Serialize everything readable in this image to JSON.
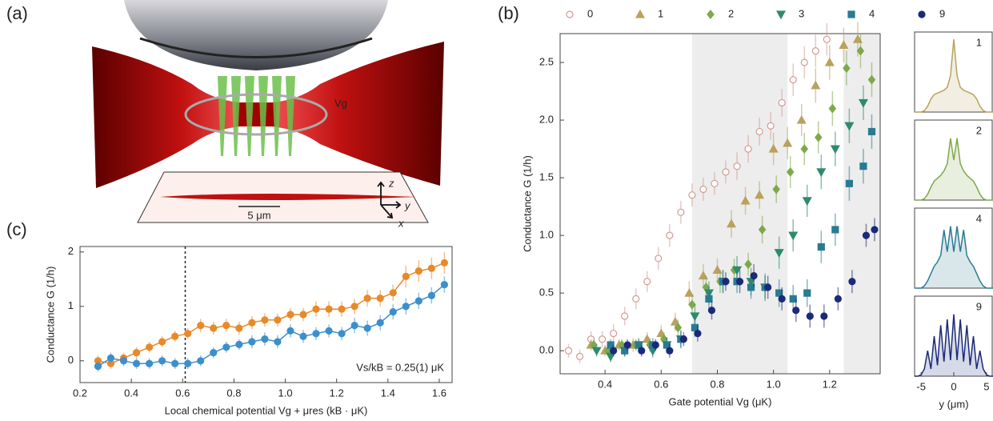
{
  "panel_labels": [
    "(a)",
    "(b)",
    "(c)"
  ],
  "diagram": {
    "gate_label": "Vg",
    "scale_bar": "5 μm",
    "axis_labels": [
      "z",
      "y",
      "x"
    ]
  },
  "chart_data": [
    {
      "type": "scatter",
      "xlabel": "Gate potential Vg (μK)",
      "ylabel": "Conductance G (1/h)",
      "xlim": [
        0.24,
        1.38
      ],
      "ylim": [
        -0.2,
        2.75
      ],
      "xticks": [
        0.4,
        0.6,
        0.8,
        {
          "value": 1,
          "label": "1.0"
        },
        1.2
      ],
      "yticks": [
        {
          "value": 0,
          "label": "0.0"
        },
        0.5,
        {
          "value": 1,
          "label": "1.0"
        },
        1.5,
        {
          "value": 2,
          "label": "2.0"
        },
        2.5
      ],
      "shaded_regions": [
        [
          0.71,
          1.05
        ],
        [
          1.25,
          1.38
        ]
      ],
      "legend": "top",
      "series": [
        {
          "name": "0",
          "color": "#d49a94",
          "marker": "open-circle",
          "x": [
            0.27,
            0.31,
            0.35,
            0.39,
            0.43,
            0.47,
            0.51,
            0.55,
            0.59,
            0.63,
            0.67,
            0.71,
            0.75,
            0.79,
            0.83,
            0.87,
            0.91,
            0.95,
            0.99,
            1.03,
            1.07,
            1.11,
            1.15,
            1.19
          ],
          "values": [
            0.0,
            -0.05,
            0.1,
            0.1,
            0.15,
            0.3,
            0.45,
            0.6,
            0.8,
            1.0,
            1.2,
            1.35,
            1.4,
            1.45,
            1.55,
            1.6,
            1.75,
            1.9,
            1.95,
            2.15,
            2.35,
            2.5,
            2.6,
            2.7
          ],
          "errors": [
            0.06,
            0.06,
            0.07,
            0.07,
            0.08,
            0.08,
            0.09,
            0.09,
            0.1,
            0.1,
            0.1,
            0.1,
            0.1,
            0.1,
            0.1,
            0.12,
            0.12,
            0.12,
            0.12,
            0.12,
            0.14,
            0.14,
            0.14,
            0.14
          ]
        },
        {
          "name": "1",
          "color": "#b9a15e",
          "marker": "triangle",
          "x": [
            0.35,
            0.4,
            0.45,
            0.5,
            0.55,
            0.6,
            0.65,
            0.7,
            0.75,
            0.8,
            0.85,
            0.9,
            0.95,
            1.0,
            1.05,
            1.1,
            1.15,
            1.2,
            1.25,
            1.3
          ],
          "values": [
            0.05,
            0.0,
            0.05,
            0.05,
            0.1,
            0.15,
            0.25,
            0.5,
            0.65,
            0.7,
            1.1,
            1.3,
            1.35,
            1.75,
            1.8,
            2.0,
            2.3,
            2.5,
            2.65,
            2.7
          ],
          "errors": [
            0.05,
            0.05,
            0.05,
            0.06,
            0.06,
            0.07,
            0.08,
            0.1,
            0.1,
            0.1,
            0.12,
            0.12,
            0.12,
            0.14,
            0.14,
            0.14,
            0.15,
            0.15,
            0.15,
            0.15
          ]
        },
        {
          "name": "2",
          "color": "#7ea84a",
          "marker": "diamond",
          "x": [
            0.36,
            0.41,
            0.46,
            0.51,
            0.56,
            0.61,
            0.66,
            0.71,
            0.76,
            0.81,
            0.86,
            0.91,
            0.96,
            1.01,
            1.06,
            1.11,
            1.16,
            1.21,
            1.26,
            1.31,
            1.35
          ],
          "values": [
            0.05,
            0.0,
            0.05,
            0.05,
            0.05,
            0.1,
            0.2,
            0.4,
            0.55,
            0.6,
            0.7,
            0.75,
            1.05,
            1.4,
            1.55,
            1.75,
            1.85,
            2.1,
            2.45,
            2.6,
            2.35
          ],
          "errors": [
            0.05,
            0.05,
            0.05,
            0.05,
            0.06,
            0.06,
            0.07,
            0.08,
            0.1,
            0.1,
            0.1,
            0.1,
            0.12,
            0.12,
            0.14,
            0.14,
            0.14,
            0.15,
            0.15,
            0.15,
            0.15
          ]
        },
        {
          "name": "3",
          "color": "#2e8b6c",
          "marker": "down-triangle",
          "x": [
            0.37,
            0.42,
            0.47,
            0.52,
            0.57,
            0.62,
            0.67,
            0.72,
            0.77,
            0.82,
            0.87,
            0.92,
            0.97,
            1.02,
            1.07,
            1.12,
            1.17,
            1.22,
            1.27,
            1.32
          ],
          "values": [
            0.0,
            -0.05,
            0.0,
            0.05,
            0.0,
            0.05,
            0.1,
            0.3,
            0.5,
            0.6,
            0.7,
            0.6,
            0.55,
            0.85,
            1.0,
            1.3,
            1.55,
            1.75,
            1.95,
            2.15
          ],
          "errors": [
            0.05,
            0.05,
            0.05,
            0.06,
            0.06,
            0.07,
            0.08,
            0.1,
            0.1,
            0.1,
            0.12,
            0.12,
            0.12,
            0.14,
            0.14,
            0.14,
            0.15,
            0.15,
            0.15,
            0.15
          ]
        },
        {
          "name": "4",
          "color": "#2a7a92",
          "marker": "square",
          "x": [
            0.42,
            0.47,
            0.52,
            0.57,
            0.62,
            0.67,
            0.72,
            0.77,
            0.82,
            0.87,
            0.92,
            0.97,
            1.02,
            1.07,
            1.12,
            1.17,
            1.22,
            1.27,
            1.32,
            1.35
          ],
          "values": [
            0.05,
            0.0,
            0.05,
            0.05,
            0.05,
            0.1,
            0.2,
            0.45,
            0.6,
            0.6,
            0.55,
            0.55,
            0.5,
            0.45,
            0.5,
            0.9,
            1.05,
            1.45,
            1.6,
            1.9
          ],
          "errors": [
            0.05,
            0.05,
            0.05,
            0.06,
            0.06,
            0.07,
            0.08,
            0.1,
            0.1,
            0.1,
            0.1,
            0.1,
            0.12,
            0.12,
            0.12,
            0.14,
            0.14,
            0.15,
            0.15,
            0.15
          ]
        },
        {
          "name": "9",
          "color": "#1b2a78",
          "marker": "filled-circle",
          "x": [
            0.43,
            0.48,
            0.53,
            0.58,
            0.63,
            0.68,
            0.73,
            0.78,
            0.83,
            0.88,
            0.93,
            0.98,
            1.03,
            1.08,
            1.13,
            1.18,
            1.23,
            1.28,
            1.33,
            1.36
          ],
          "values": [
            0.0,
            0.05,
            0.0,
            0.05,
            0.0,
            0.1,
            0.15,
            0.35,
            0.6,
            0.6,
            0.65,
            0.55,
            0.45,
            0.35,
            0.3,
            0.3,
            0.45,
            0.6,
            1.0,
            1.05
          ],
          "errors": [
            0.05,
            0.05,
            0.05,
            0.05,
            0.06,
            0.06,
            0.07,
            0.08,
            0.08,
            0.1,
            0.1,
            0.1,
            0.1,
            0.1,
            0.1,
            0.1,
            0.1,
            0.1,
            0.1,
            0.1
          ]
        }
      ]
    },
    {
      "type": "area",
      "xlabel": "y (μm)",
      "xlim": [
        -6,
        6
      ],
      "ylim": [
        0,
        1.1
      ],
      "xticks": [
        -5,
        0,
        5
      ],
      "x": [
        -6,
        -5.5,
        -5,
        -4.5,
        -4,
        -3.5,
        -3,
        -2.5,
        -2,
        -1.5,
        -1,
        -0.5,
        0,
        0.5,
        1,
        1.5,
        2,
        2.5,
        3,
        3.5,
        4,
        4.5,
        5,
        5.5,
        6
      ],
      "series": [
        {
          "name": "1",
          "color": "#b9a15e",
          "values": [
            0,
            0,
            0,
            0.02,
            0.08,
            0.18,
            0.24,
            0.26,
            0.28,
            0.3,
            0.34,
            0.5,
            1.0,
            0.5,
            0.34,
            0.3,
            0.28,
            0.26,
            0.24,
            0.18,
            0.08,
            0.02,
            0,
            0,
            0
          ]
        },
        {
          "name": "2",
          "color": "#7ea84a",
          "values": [
            0,
            0,
            0,
            0.02,
            0.08,
            0.18,
            0.26,
            0.3,
            0.34,
            0.4,
            0.5,
            0.85,
            0.55,
            0.85,
            0.5,
            0.4,
            0.34,
            0.3,
            0.26,
            0.18,
            0.08,
            0.02,
            0,
            0,
            0
          ]
        },
        {
          "name": "4",
          "color": "#2a7a92",
          "values": [
            0,
            0,
            0,
            0.03,
            0.1,
            0.2,
            0.3,
            0.36,
            0.45,
            0.8,
            0.5,
            0.85,
            0.5,
            0.85,
            0.5,
            0.8,
            0.45,
            0.36,
            0.3,
            0.2,
            0.1,
            0.03,
            0,
            0,
            0
          ]
        },
        {
          "name": "9",
          "color": "#1b2a78",
          "values": [
            0,
            0,
            0.02,
            0.1,
            0.35,
            0.1,
            0.55,
            0.15,
            0.7,
            0.2,
            0.78,
            0.22,
            0.85,
            0.22,
            0.78,
            0.2,
            0.7,
            0.15,
            0.55,
            0.1,
            0.35,
            0.1,
            0.02,
            0,
            0
          ]
        }
      ]
    },
    {
      "type": "scatter",
      "xlabel": "Local chemical potential Vg + μres (kB · μK)",
      "ylabel": "Conductance G (1/h)",
      "xlim": [
        0.2,
        1.65
      ],
      "ylim": [
        -0.4,
        2.1
      ],
      "xticks": [
        0.2,
        0.4,
        0.6,
        0.8,
        {
          "value": 1,
          "label": "1.0"
        },
        1.2,
        1.4,
        1.6
      ],
      "yticks": [
        0,
        1,
        2
      ],
      "vline": 0.61,
      "annotation": "Vs/kB = 0.25(1) μK",
      "fit_line": true,
      "series": [
        {
          "color": "#e8892a",
          "marker": "filled-circle",
          "x": [
            0.27,
            0.32,
            0.37,
            0.42,
            0.47,
            0.52,
            0.57,
            0.62,
            0.67,
            0.72,
            0.77,
            0.82,
            0.87,
            0.92,
            0.97,
            1.02,
            1.07,
            1.12,
            1.17,
            1.22,
            1.27,
            1.32,
            1.37,
            1.42,
            1.47,
            1.52,
            1.57,
            1.62
          ],
          "values": [
            0.0,
            -0.05,
            0.05,
            0.15,
            0.25,
            0.35,
            0.45,
            0.5,
            0.65,
            0.6,
            0.65,
            0.6,
            0.7,
            0.75,
            0.75,
            0.85,
            0.85,
            0.95,
            0.95,
            0.95,
            1.0,
            1.15,
            1.15,
            1.25,
            1.55,
            1.65,
            1.7,
            1.8
          ],
          "errors": [
            0.1,
            0.1,
            0.1,
            0.1,
            0.1,
            0.1,
            0.1,
            0.1,
            0.12,
            0.12,
            0.12,
            0.12,
            0.12,
            0.12,
            0.12,
            0.12,
            0.12,
            0.14,
            0.14,
            0.14,
            0.14,
            0.15,
            0.15,
            0.15,
            0.2,
            0.2,
            0.2,
            0.2
          ]
        },
        {
          "color": "#3c8fcb",
          "marker": "filled-circle",
          "x": [
            0.27,
            0.32,
            0.37,
            0.42,
            0.47,
            0.52,
            0.57,
            0.62,
            0.67,
            0.72,
            0.77,
            0.82,
            0.87,
            0.92,
            0.97,
            1.02,
            1.07,
            1.12,
            1.17,
            1.22,
            1.27,
            1.32,
            1.37,
            1.42,
            1.47,
            1.52,
            1.57,
            1.62
          ],
          "values": [
            -0.1,
            0.05,
            0.0,
            -0.05,
            -0.05,
            0.0,
            -0.05,
            -0.05,
            0.0,
            0.15,
            0.25,
            0.3,
            0.35,
            0.4,
            0.35,
            0.55,
            0.45,
            0.5,
            0.55,
            0.5,
            0.65,
            0.6,
            0.7,
            0.9,
            1.0,
            1.1,
            1.2,
            1.4
          ],
          "errors": [
            0.1,
            0.1,
            0.1,
            0.1,
            0.1,
            0.1,
            0.1,
            0.1,
            0.1,
            0.1,
            0.1,
            0.1,
            0.12,
            0.12,
            0.12,
            0.12,
            0.12,
            0.12,
            0.12,
            0.12,
            0.14,
            0.14,
            0.14,
            0.14,
            0.15,
            0.15,
            0.15,
            0.15
          ]
        }
      ]
    }
  ]
}
